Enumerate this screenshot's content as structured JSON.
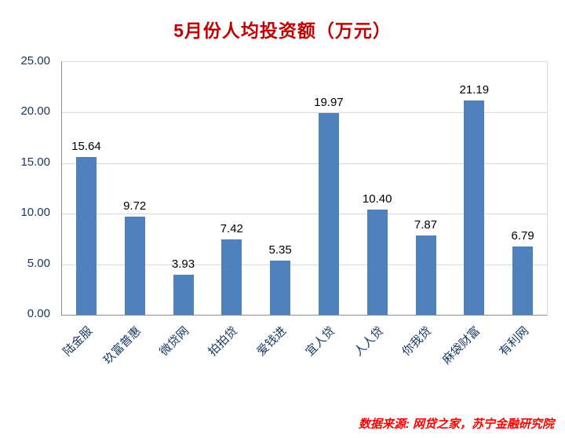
{
  "title": "5月份人均投资额（万元）",
  "footer": "数据来源: 网贷之家，苏宁金融研究院",
  "chart_data": {
    "type": "bar",
    "title": "5月份人均投资额（万元）",
    "categories": [
      "陆金服",
      "玖富普惠",
      "微贷网",
      "拍拍贷",
      "爱钱进",
      "宜人贷",
      "人人贷",
      "你我贷",
      "麻袋财富",
      "有利网"
    ],
    "values": [
      15.64,
      9.72,
      3.93,
      7.42,
      5.35,
      19.97,
      10.4,
      7.87,
      21.19,
      6.79
    ],
    "xlabel": "",
    "ylabel": "",
    "ylim": [
      0,
      25
    ],
    "ytick_step": 5,
    "yticks": [
      "0.00",
      "5.00",
      "10.00",
      "15.00",
      "20.00",
      "25.00"
    ],
    "grid": true,
    "legend": "none",
    "bar_color": "#4f81bd",
    "value_label_color": "#000000",
    "axis_label_color": "#17375d",
    "title_color": "#c00000",
    "footer_color": "#ff0000",
    "source_note": "数据来源: 网贷之家，苏宁金融研究院"
  }
}
